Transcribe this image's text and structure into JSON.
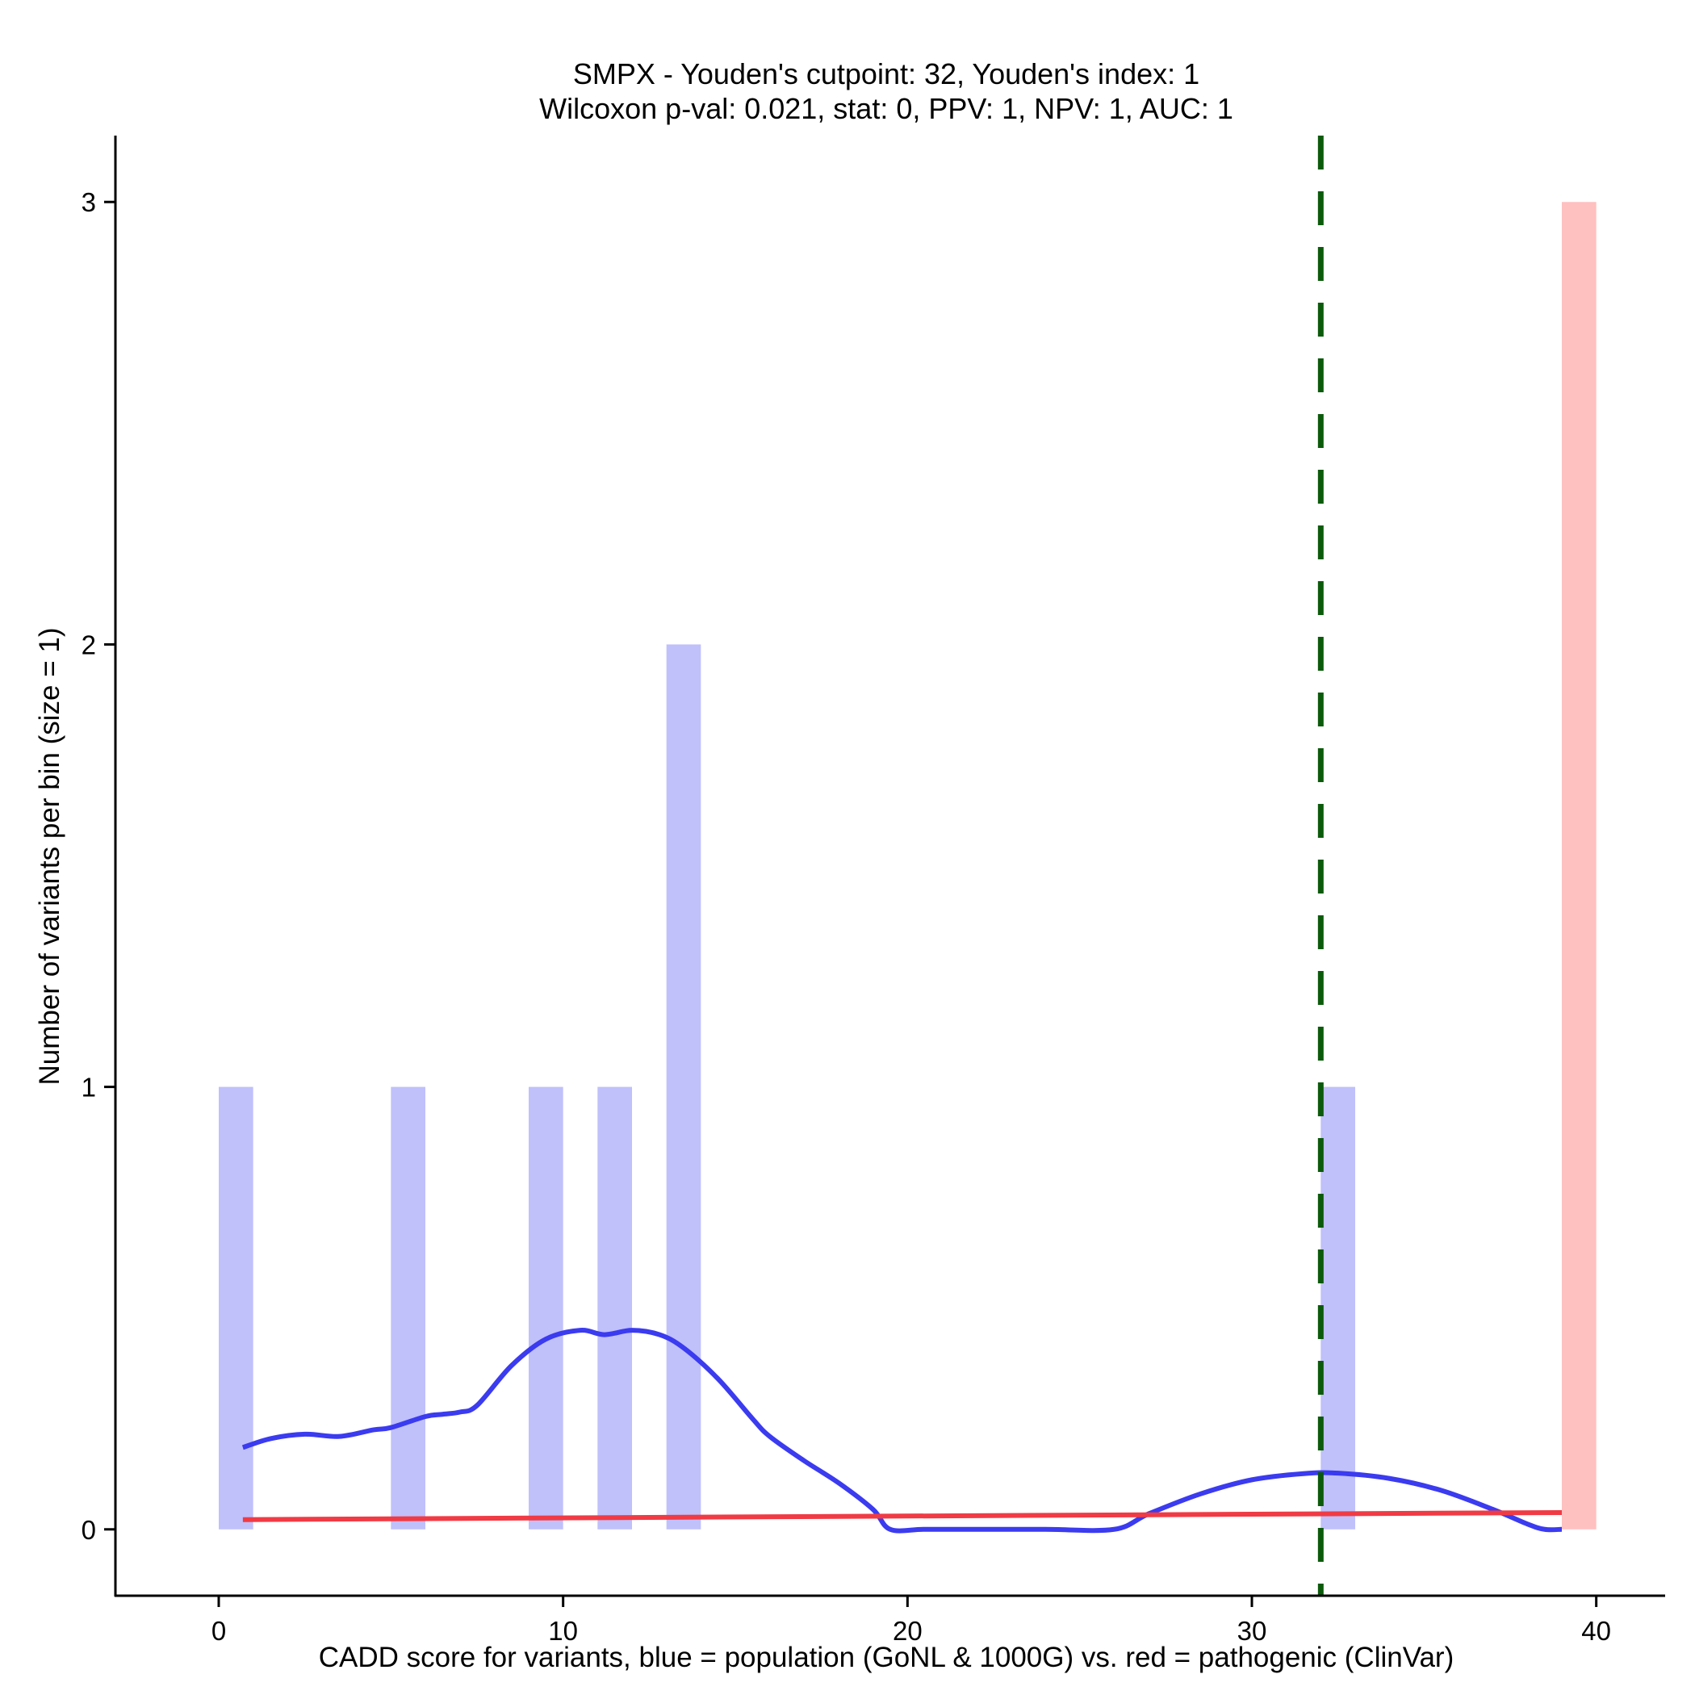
{
  "chart_data": {
    "type": "bar",
    "title_line1": "SMPX - Youden's cutpoint: 32, Youden's index: 1",
    "title_line2": "Wilcoxon p-val: 0.021, stat: 0, PPV: 1, NPV: 1, AUC: 1",
    "xlabel": "CADD score for variants, blue = population (GoNL & 1000G) vs. red = pathogenic (ClinVar)",
    "ylabel": "Number of variants per bin (size = 1)",
    "xlim": [
      -3,
      42
    ],
    "ylim": [
      -0.15,
      3.15
    ],
    "x_ticks": [
      0,
      10,
      20,
      30,
      40
    ],
    "y_ticks": [
      0,
      1,
      2,
      3
    ],
    "grid": false,
    "cutpoint": 32,
    "colors": {
      "population_bar": "#c0c0fb",
      "pathogenic_bar": "#ffc0c0",
      "population_density": "#3b3bf0",
      "pathogenic_density": "#f03b45",
      "cutpoint_line": "#0b5a0b"
    },
    "series": [
      {
        "kind": "bars",
        "group": "population",
        "bins": [
          {
            "x0": 0,
            "x1": 1,
            "count": 1
          },
          {
            "x0": 5,
            "x1": 6,
            "count": 1
          },
          {
            "x0": 9,
            "x1": 10,
            "count": 1
          },
          {
            "x0": 11,
            "x1": 12,
            "count": 1
          },
          {
            "x0": 13,
            "x1": 14,
            "count": 2
          },
          {
            "x0": 32,
            "x1": 33,
            "count": 1
          }
        ]
      },
      {
        "kind": "bars",
        "group": "pathogenic",
        "bins": [
          {
            "x0": 39,
            "x1": 40,
            "count": 3
          }
        ]
      },
      {
        "kind": "line",
        "group": "population",
        "x": [
          0.7,
          1.5,
          2.5,
          3.5,
          4.5,
          5.0,
          6.0,
          6.5,
          7.0,
          7.5,
          8.5,
          9.5,
          10.5,
          11.2,
          12.0,
          12.8,
          13.5,
          14.5,
          15.5,
          16.0,
          17.0,
          18.0,
          19.0,
          19.5,
          20.5,
          22.0,
          24.0,
          26.0,
          27.0,
          28.5,
          30.0,
          31.5,
          32.5,
          34.0,
          35.5,
          37.0,
          38.0,
          38.5,
          39.0
        ],
        "y": [
          0.185,
          0.205,
          0.215,
          0.21,
          0.225,
          0.23,
          0.255,
          0.26,
          0.265,
          0.28,
          0.37,
          0.43,
          0.45,
          0.44,
          0.45,
          0.44,
          0.41,
          0.34,
          0.25,
          0.21,
          0.155,
          0.105,
          0.045,
          0.0,
          0.0,
          0.0,
          0.0,
          0.0,
          0.035,
          0.08,
          0.112,
          0.126,
          0.127,
          0.115,
          0.088,
          0.045,
          0.012,
          0.0,
          0.0
        ]
      },
      {
        "kind": "line",
        "group": "pathogenic",
        "x": [
          0.7,
          39.0
        ],
        "y": [
          0.022,
          0.038
        ]
      }
    ]
  }
}
